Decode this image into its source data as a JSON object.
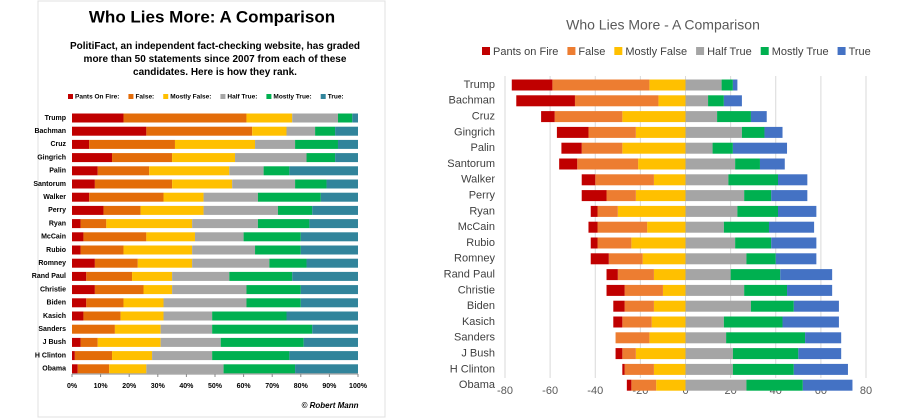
{
  "chart_data": [
    {
      "type": "stacked_bar_100",
      "title": "Who Lies More: A Comparison",
      "subtitle": "PolitiFact, an independent fact-checking website, has graded more than 50 statements since 2007 from each of these candidates. Here is how they rank.",
      "credit": "© Robert Mann",
      "categories": [
        "Trump",
        "Bachman",
        "Cruz",
        "Gingrich",
        "Palin",
        "Santorum",
        "Walker",
        "Perry",
        "Ryan",
        "McCain",
        "Rubio",
        "Romney",
        "Rand Paul",
        "Christie",
        "Biden",
        "Kasich",
        "Sanders",
        "J Bush",
        "H Clinton",
        "Obama"
      ],
      "series": [
        {
          "name": "Pants On Fire:",
          "color": "#c00000",
          "values": [
            18,
            26,
            6,
            14,
            9,
            8,
            6,
            11,
            3,
            4,
            3,
            8,
            5,
            8,
            5,
            4,
            0,
            3,
            1,
            2
          ]
        },
        {
          "name": "False:",
          "color": "#e36c09",
          "values": [
            43,
            37,
            30,
            21,
            18,
            27,
            26,
            13,
            9,
            22,
            15,
            15,
            16,
            17,
            13,
            13,
            15,
            6,
            13,
            11
          ]
        },
        {
          "name": "Mostly False:",
          "color": "#ffc000",
          "values": [
            16,
            12,
            28,
            22,
            28,
            21,
            14,
            22,
            30,
            17,
            24,
            19,
            14,
            10,
            14,
            15,
            16,
            22,
            14,
            13
          ]
        },
        {
          "name": "Half True:",
          "color": "#a6a6a6",
          "values": [
            16,
            10,
            14,
            25,
            12,
            22,
            19,
            26,
            23,
            17,
            22,
            27,
            20,
            26,
            29,
            17,
            18,
            21,
            21,
            27
          ]
        },
        {
          "name": "Mostly True:",
          "color": "#00b050",
          "values": [
            5,
            7,
            15,
            10,
            9,
            11,
            22,
            12,
            18,
            20,
            16,
            13,
            22,
            19,
            19,
            26,
            35,
            29,
            27,
            25
          ]
        },
        {
          "name": "True:",
          "color": "#31849b",
          "values": [
            2,
            8,
            7,
            8,
            24,
            11,
            13,
            16,
            17,
            20,
            20,
            18,
            23,
            20,
            20,
            25,
            16,
            19,
            24,
            22
          ]
        }
      ],
      "xlim": [
        0,
        100
      ],
      "xticks": [
        {
          "value": 0,
          "label": "0%"
        },
        {
          "value": 10,
          "label": "10%"
        },
        {
          "value": 20,
          "label": "20%"
        },
        {
          "value": 30,
          "label": "30%"
        },
        {
          "value": 40,
          "label": "40%"
        },
        {
          "value": 50,
          "label": "50%"
        },
        {
          "value": 60,
          "label": "60%"
        },
        {
          "value": 70,
          "label": "70%"
        },
        {
          "value": 80,
          "label": "80%"
        },
        {
          "value": 90,
          "label": "90%"
        },
        {
          "value": 100,
          "label": "100%"
        }
      ]
    },
    {
      "type": "diverging_bar",
      "title": "Who Lies More - A Comparison",
      "categories": [
        "Trump",
        "Bachman",
        "Cruz",
        "Gingrich",
        "Palin",
        "Santorum",
        "Walker",
        "Perry",
        "Ryan",
        "McCain",
        "Rubio",
        "Romney",
        "Rand Paul",
        "Christie",
        "Biden",
        "Kasich",
        "Sanders",
        "J Bush",
        "H Clinton",
        "Obama"
      ],
      "series": [
        {
          "name": "Pants on Fire",
          "color": "#c00000",
          "values": [
            18,
            26,
            6,
            14,
            9,
            8,
            6,
            11,
            3,
            4,
            3,
            8,
            5,
            8,
            5,
            4,
            0,
            3,
            1,
            2
          ]
        },
        {
          "name": "False",
          "color": "#ed7d31",
          "values": [
            43,
            37,
            30,
            21,
            18,
            27,
            26,
            13,
            9,
            22,
            15,
            15,
            16,
            17,
            13,
            13,
            15,
            6,
            13,
            11
          ]
        },
        {
          "name": "Mostly False",
          "color": "#ffc000",
          "values": [
            16,
            12,
            28,
            22,
            28,
            21,
            14,
            22,
            30,
            17,
            24,
            19,
            14,
            10,
            14,
            15,
            16,
            22,
            14,
            13
          ]
        },
        {
          "name": "Half True",
          "color": "#a5a5a5",
          "values": [
            16,
            10,
            14,
            25,
            12,
            22,
            19,
            26,
            23,
            17,
            22,
            27,
            20,
            26,
            29,
            17,
            18,
            21,
            21,
            27
          ]
        },
        {
          "name": "Mostly True",
          "color": "#00b050",
          "values": [
            5,
            7,
            15,
            10,
            9,
            11,
            22,
            12,
            18,
            20,
            16,
            13,
            22,
            19,
            19,
            26,
            35,
            29,
            27,
            25
          ]
        },
        {
          "name": "True",
          "color": "#4472c4",
          "values": [
            2,
            8,
            7,
            8,
            24,
            11,
            13,
            16,
            17,
            20,
            20,
            18,
            23,
            20,
            20,
            25,
            16,
            19,
            24,
            22
          ]
        }
      ],
      "xlim": [
        -80,
        80
      ],
      "xticks": [
        -80,
        -60,
        -40,
        -20,
        0,
        20,
        40,
        60,
        80
      ],
      "grid": true
    }
  ]
}
